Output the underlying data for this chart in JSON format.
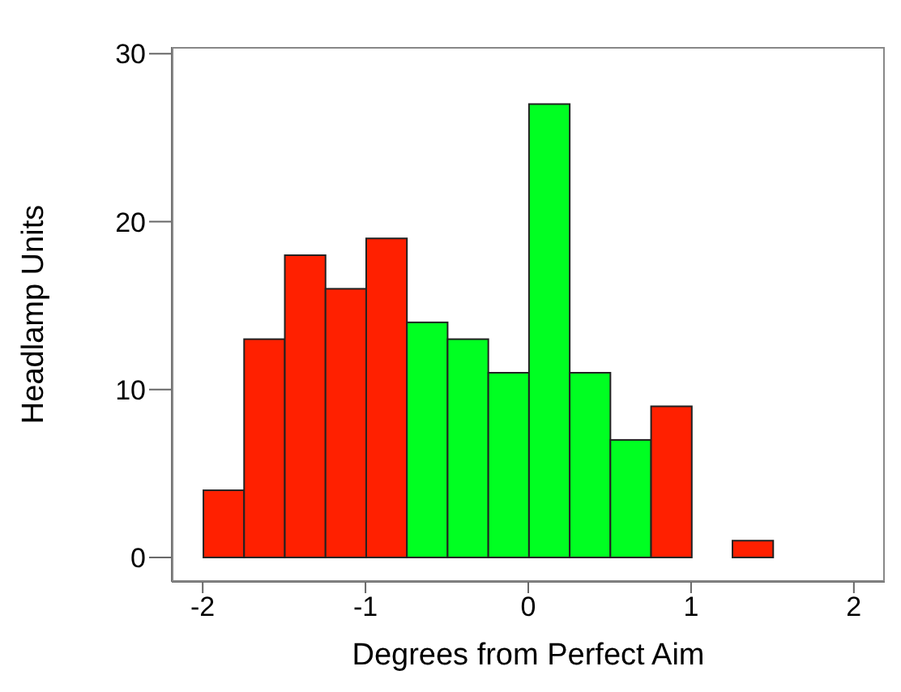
{
  "chart_data": {
    "type": "histogram",
    "xlabel": "Degrees from Perfect Aim",
    "ylabel": "Headlamp Units",
    "bins": [
      -2,
      -1.75,
      -1.5,
      -1.25,
      -1,
      -0.75,
      -0.5,
      -0.25,
      0,
      0.25,
      0.5,
      0.75,
      1,
      1.25,
      1.5,
      1.75,
      2
    ],
    "values": [
      4,
      13,
      18,
      16,
      19,
      14,
      13,
      11,
      27,
      11,
      7,
      9,
      0,
      1,
      0,
      0
    ],
    "colors": [
      "#ff2000",
      "#ff2000",
      "#ff2000",
      "#ff2000",
      "#ff2000",
      "#00ff22",
      "#00ff22",
      "#00ff22",
      "#00ff22",
      "#00ff22",
      "#00ff22",
      "#ff2000",
      "#ff2000",
      "#ff2000",
      "#ff2000",
      "#ff2000"
    ],
    "xlim": [
      -2.19,
      2.19
    ],
    "ylim": [
      -1.45,
      30.4
    ],
    "xticks": [
      -2,
      -1,
      0,
      1,
      2
    ],
    "yticks": [
      0,
      10,
      20,
      30
    ]
  }
}
